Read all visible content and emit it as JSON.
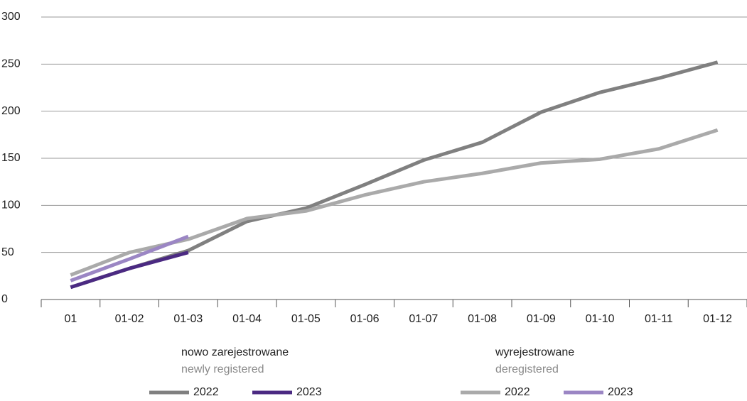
{
  "chart_data": {
    "type": "line",
    "categories": [
      "01",
      "01-02",
      "01-03",
      "01-04",
      "01-05",
      "01-06",
      "01-07",
      "01-08",
      "01-09",
      "01-10",
      "01-11",
      "01-12"
    ],
    "legend_groups": [
      {
        "title": "nowo zarejestrowane",
        "subtitle": "newly registered"
      },
      {
        "title": "wyrejestrowane",
        "subtitle": "deregistered"
      }
    ],
    "series": [
      {
        "name": "2022",
        "group": 0,
        "color": "#808080",
        "values": [
          13,
          33,
          52,
          83,
          97,
          122,
          148,
          167,
          199,
          220,
          235,
          252
        ]
      },
      {
        "name": "2023",
        "group": 0,
        "color": "#4b2a82",
        "values": [
          13,
          33,
          50,
          null,
          null,
          null,
          null,
          null,
          null,
          null,
          null,
          null
        ]
      },
      {
        "name": "2022",
        "group": 1,
        "color": "#aaaaaa",
        "values": [
          26,
          50,
          64,
          86,
          94,
          111,
          125,
          134,
          145,
          149,
          160,
          180
        ]
      },
      {
        "name": "2023",
        "group": 1,
        "color": "#9b86c4",
        "values": [
          20,
          43,
          67,
          null,
          null,
          null,
          null,
          null,
          null,
          null,
          null,
          null
        ]
      }
    ],
    "ylim": [
      0,
      300
    ],
    "yticks": [
      0,
      50,
      100,
      150,
      200,
      250,
      300
    ],
    "grid": true
  }
}
